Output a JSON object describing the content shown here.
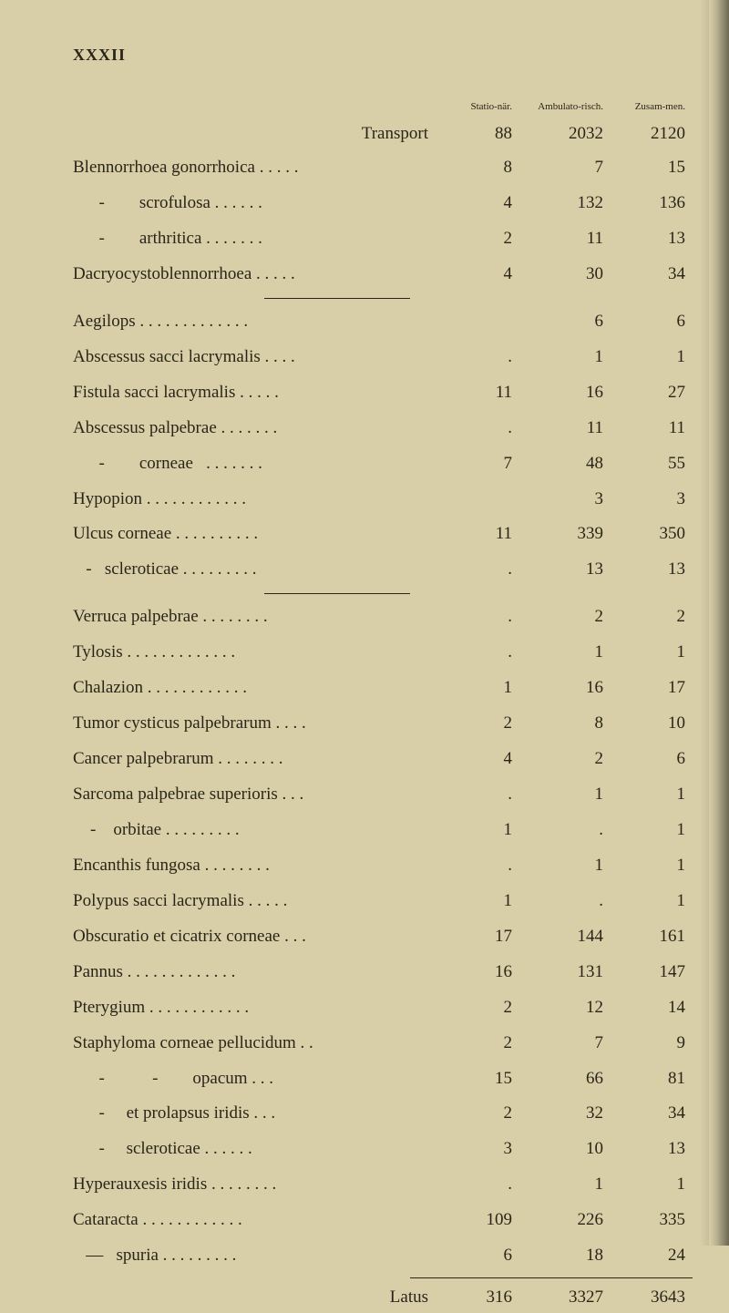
{
  "header": "XXXII",
  "column_headers": {
    "c1": "Statio-när.",
    "c2": "Ambulato-risch.",
    "c3": "Zusam-men."
  },
  "transport": {
    "label": "Transport",
    "c1": "88",
    "c2": "2032",
    "c3": "2120"
  },
  "rows": [
    {
      "label": "Blennorrhoea gonorrhoica . . . . .",
      "c1": "8",
      "c2": "7",
      "c3": "15"
    },
    {
      "label": "      -        scrofulosa . . . . . .",
      "c1": "4",
      "c2": "132",
      "c3": "136"
    },
    {
      "label": "      -        arthritica . . . . . . .",
      "c1": "2",
      "c2": "11",
      "c3": "13"
    },
    {
      "label": "Dacryocystoblennorrhoea . . . . .",
      "c1": "4",
      "c2": "30",
      "c3": "34"
    }
  ],
  "rows2": [
    {
      "label": "Aegilops . . . . . . . . . . . . .",
      "c1": "",
      "c2": "6",
      "c3": "6"
    },
    {
      "label": "Abscessus sacci lacrymalis . . . .",
      "c1": ".",
      "c2": "1",
      "c3": "1"
    },
    {
      "label": "Fistula sacci lacrymalis . . . . .",
      "c1": "11",
      "c2": "16",
      "c3": "27"
    },
    {
      "label": "Abscessus palpebrae . . . . . . .",
      "c1": ".",
      "c2": "11",
      "c3": "11"
    },
    {
      "label": "      -        corneae   . . . . . . .",
      "c1": "7",
      "c2": "48",
      "c3": "55"
    },
    {
      "label": "Hypopion . . . . . . . . . . . .",
      "c1": "",
      "c2": "3",
      "c3": "3"
    },
    {
      "label": "Ulcus corneae . . . . . . . . . .",
      "c1": "11",
      "c2": "339",
      "c3": "350"
    },
    {
      "label": "   -   scleroticae . . . . . . . . .",
      "c1": ".",
      "c2": "13",
      "c3": "13"
    }
  ],
  "rows3": [
    {
      "label": "Verruca palpebrae . . . . . . . .",
      "c1": ".",
      "c2": "2",
      "c3": "2"
    },
    {
      "label": "Tylosis . . . . . . . . . . . . .",
      "c1": ".",
      "c2": "1",
      "c3": "1"
    },
    {
      "label": "Chalazion . . . . . . . . . . . .",
      "c1": "1",
      "c2": "16",
      "c3": "17"
    },
    {
      "label": "Tumor cysticus palpebrarum . . . .",
      "c1": "2",
      "c2": "8",
      "c3": "10"
    },
    {
      "label": "Cancer palpebrarum . . . . . . . .",
      "c1": "4",
      "c2": "2",
      "c3": "6"
    },
    {
      "label": "Sarcoma palpebrae superioris . . .",
      "c1": ".",
      "c2": "1",
      "c3": "1"
    },
    {
      "label": "    -    orbitae . . . . . . . . .",
      "c1": "1",
      "c2": ".",
      "c3": "1"
    },
    {
      "label": "Encanthis fungosa . . . . . . . .",
      "c1": ".",
      "c2": "1",
      "c3": "1"
    },
    {
      "label": "Polypus sacci lacrymalis . . . . .",
      "c1": "1",
      "c2": ".",
      "c3": "1"
    },
    {
      "label": "Obscuratio et cicatrix corneae . . .",
      "c1": "17",
      "c2": "144",
      "c3": "161"
    },
    {
      "label": "Pannus . . . . . . . . . . . . .",
      "c1": "16",
      "c2": "131",
      "c3": "147"
    },
    {
      "label": "Pterygium . . . . . . . . . . . .",
      "c1": "2",
      "c2": "12",
      "c3": "14"
    },
    {
      "label": "Staphyloma corneae pellucidum . .",
      "c1": "2",
      "c2": "7",
      "c3": "9"
    },
    {
      "label": "      -           -        opacum . . .",
      "c1": "15",
      "c2": "66",
      "c3": "81"
    },
    {
      "label": "      -     et prolapsus iridis . . .",
      "c1": "2",
      "c2": "32",
      "c3": "34"
    },
    {
      "label": "      -     scleroticae . . . . . .",
      "c1": "3",
      "c2": "10",
      "c3": "13"
    },
    {
      "label": "Hyperauxesis iridis . . . . . . . .",
      "c1": ".",
      "c2": "1",
      "c3": "1"
    },
    {
      "label": "Cataracta . . . . . . . . . . . .",
      "c1": "109",
      "c2": "226",
      "c3": "335"
    },
    {
      "label": "   —   spuria . . . . . . . . .",
      "c1": "6",
      "c2": "18",
      "c3": "24"
    }
  ],
  "latus": {
    "label": "Latus",
    "c1": "316",
    "c2": "3327",
    "c3": "3643"
  }
}
